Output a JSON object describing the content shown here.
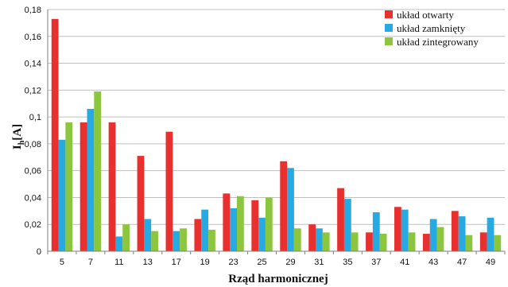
{
  "chart_data": {
    "type": "bar",
    "title": "",
    "xlabel": "Rząd harmonicznej",
    "ylabel": "I",
    "ylabel_sub": "h",
    "ylabel_unit": "[A]",
    "ylim": [
      0,
      0.18
    ],
    "yticks": [
      0,
      0.02,
      0.04,
      0.06,
      0.08,
      0.1,
      0.12,
      0.14,
      0.16,
      0.18
    ],
    "ytick_labels": [
      "0",
      "0,02",
      "0,04",
      "0,06",
      "0,08",
      "0,1",
      "0,12",
      "0,14",
      "0,16",
      "0,18"
    ],
    "grid": true,
    "legend_position": "top-right",
    "categories": [
      "5",
      "7",
      "11",
      "13",
      "17",
      "19",
      "23",
      "25",
      "29",
      "31",
      "35",
      "37",
      "41",
      "43",
      "47",
      "49"
    ],
    "series": [
      {
        "name": "układ otwarty",
        "color": "#e8302f",
        "values": [
          0.173,
          0.096,
          0.096,
          0.071,
          0.089,
          0.024,
          0.043,
          0.038,
          0.067,
          0.02,
          0.047,
          0.014,
          0.033,
          0.013,
          0.03,
          0.014
        ]
      },
      {
        "name": "układ zamknięty",
        "color": "#27a9e1",
        "values": [
          0.083,
          0.106,
          0.011,
          0.024,
          0.015,
          0.031,
          0.032,
          0.025,
          0.062,
          0.017,
          0.039,
          0.029,
          0.031,
          0.024,
          0.026,
          0.025
        ]
      },
      {
        "name": "układ zintegrowany",
        "color": "#8cc63f",
        "values": [
          0.096,
          0.119,
          0.02,
          0.015,
          0.017,
          0.016,
          0.041,
          0.04,
          0.017,
          0.014,
          0.014,
          0.013,
          0.014,
          0.018,
          0.012,
          0.012
        ]
      }
    ]
  }
}
